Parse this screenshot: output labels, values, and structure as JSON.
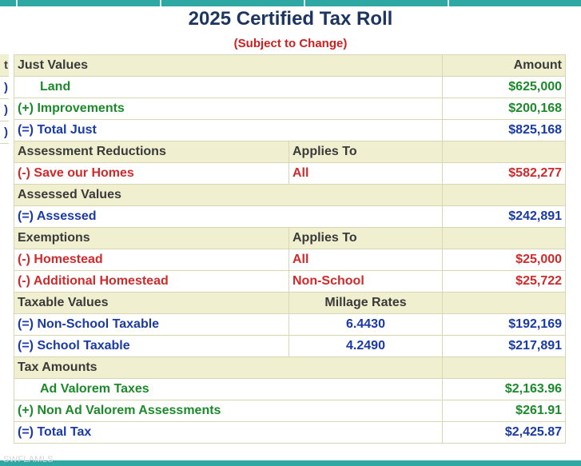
{
  "title": "2025 Certified Tax Roll",
  "subtitle": "(Subject to Change)",
  "left_column": {
    "header": "t",
    "marks": [
      ")",
      ")",
      ")"
    ]
  },
  "headers": {
    "just_values": "Just Values",
    "amount": "Amount",
    "assessment_reductions": "Assessment Reductions",
    "applies_to": "Applies To",
    "assessed_values": "Assessed Values",
    "exemptions": "Exemptions",
    "applies_to_2": "Applies To",
    "taxable_values": "Taxable Values",
    "millage_rates": "Millage Rates",
    "tax_amounts": "Tax Amounts"
  },
  "just": {
    "land": {
      "label": "Land",
      "amount": "$625,000"
    },
    "improvements": {
      "label": "(+) Improvements",
      "amount": "$200,168"
    },
    "total_just": {
      "label": "(=) Total Just",
      "amount": "$825,168"
    }
  },
  "reductions": {
    "save_our_homes": {
      "label": "(-) Save our Homes",
      "applies": "All",
      "amount": "$582,277"
    }
  },
  "assessed": {
    "label": "(=)  Assessed",
    "amount": "$242,891"
  },
  "exemptions": {
    "homestead": {
      "label": "(-) Homestead",
      "applies": "All",
      "amount": "$25,000"
    },
    "additional": {
      "label": "(-) Additional Homestead",
      "applies": "Non-School",
      "amount": "$25,722"
    }
  },
  "taxable": {
    "non_school": {
      "label": "(=) Non-School Taxable",
      "rate": "6.4430",
      "amount": "$192,169"
    },
    "school": {
      "label": "(=) School Taxable",
      "rate": "4.2490",
      "amount": "$217,891"
    }
  },
  "tax": {
    "ad_valorem": {
      "label": "Ad Valorem Taxes",
      "amount": "$2,163.96"
    },
    "non_ad_valorem": {
      "label": "(+) Non Ad Valorem Assessments",
      "amount": "$261.91"
    },
    "total": {
      "label": "(=) Total Tax",
      "amount": "$2,425.87"
    }
  },
  "watermark": "SWFLAMLS",
  "colors": {
    "header_bg": "#f0efcf",
    "title": "#1d3561",
    "subtitle": "#cc1f1f",
    "blue_text": "#1a3aa5",
    "green_text": "#1c8a2a",
    "red_text": "#d02a2a",
    "teal_bar": "#2fa8a3"
  }
}
